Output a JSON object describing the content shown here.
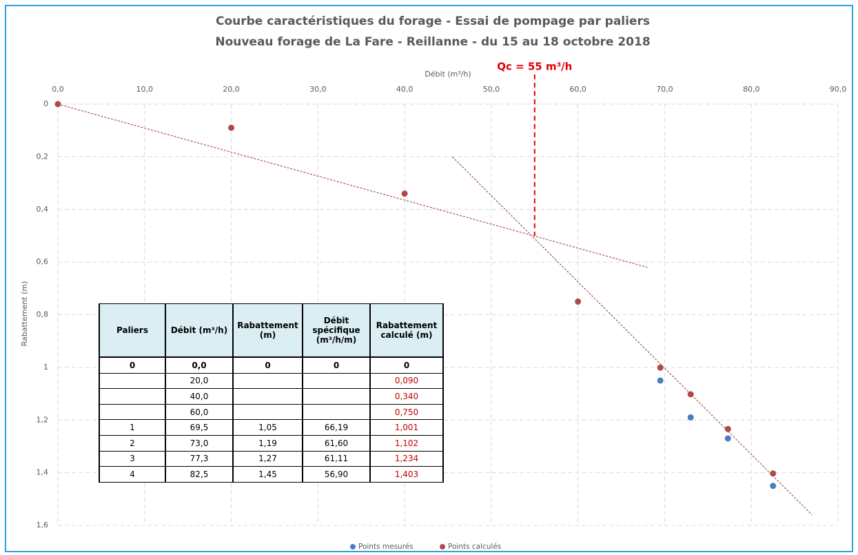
{
  "chart_data": {
    "type": "scatter",
    "title": "Courbe caractéristiques du forage - Essai de pompage par paliers",
    "subtitle": "Nouveau forage de La Fare - Reillanne - du 15 au 18 octobre 2018",
    "x_label": "Débit (m³/h)",
    "y_label": "Rabattement (m)",
    "xlim": [
      0,
      90
    ],
    "ylim": [
      0,
      1.6
    ],
    "y_reversed": true,
    "grid": true,
    "legend": "bottom",
    "xticks": [
      {
        "value": 0,
        "label": "0,0"
      },
      {
        "value": 10,
        "label": "10,0"
      },
      {
        "value": 20,
        "label": "20,0"
      },
      {
        "value": 30,
        "label": "30,0"
      },
      {
        "value": 40,
        "label": "40,0"
      },
      {
        "value": 50,
        "label": "50,0"
      },
      {
        "value": 60,
        "label": "60,0"
      },
      {
        "value": 70,
        "label": "70,0"
      },
      {
        "value": 80,
        "label": "80,0"
      },
      {
        "value": 90,
        "label": "90,0"
      }
    ],
    "yticks": [
      0,
      {
        "value": 0.2,
        "label": "0,2"
      },
      {
        "value": 0.4,
        "label": "0,4"
      },
      {
        "value": 0.6,
        "label": "0,6"
      },
      {
        "value": 0.8,
        "label": "0,8"
      },
      1,
      {
        "value": 1.2,
        "label": "1,2"
      },
      {
        "value": 1.4,
        "label": "1,4"
      },
      {
        "value": 1.6,
        "label": "1,6"
      }
    ],
    "series": [
      {
        "name": "Points mesurés",
        "color": "#4a7ebb",
        "x": [
          69.5,
          73,
          77.3,
          82.5
        ],
        "values": [
          1.05,
          1.19,
          1.27,
          1.45
        ]
      },
      {
        "name": "Points calculés",
        "color": "#b04a4a",
        "x": [
          0,
          20,
          40,
          60,
          69.5,
          73,
          77.3,
          82.5
        ],
        "values": [
          0,
          0.09,
          0.34,
          0.75,
          1.001,
          1.102,
          1.234,
          1.403
        ]
      }
    ],
    "trend_lines": [
      {
        "color": "#b06060",
        "x": [
          0,
          68
        ],
        "values": [
          0,
          0.62
        ]
      },
      {
        "color": "#b06060",
        "x": [
          45.5,
          87
        ],
        "values": [
          0.2,
          1.56
        ]
      }
    ],
    "annotation": {
      "text": "Qc = 55 m³/h",
      "x": 55,
      "y": 0.5,
      "color": "#e00000"
    }
  },
  "table": {
    "header": [
      "Paliers",
      "Débit (m³/h)",
      "Rabattement (m)",
      "Débit spécifique (m³/h/m)",
      "Rabattement calculé (m)"
    ],
    "rows": [
      [
        "0",
        "0,0",
        "0",
        "0",
        "0"
      ],
      [
        null,
        "20,0",
        null,
        null,
        "0,090"
      ],
      [
        null,
        "40,0",
        null,
        null,
        "0,340"
      ],
      [
        null,
        "60,0",
        null,
        null,
        "0,750"
      ],
      [
        "1",
        "69,5",
        "1,05",
        "66,19",
        "1,001"
      ],
      [
        "2",
        "73,0",
        "1,19",
        "61,60",
        "1,102"
      ],
      [
        "3",
        "77,3",
        "1,27",
        "61,11",
        "1,234"
      ],
      [
        "4",
        "82,5",
        "1,45",
        "56,90",
        "1,403"
      ]
    ]
  }
}
